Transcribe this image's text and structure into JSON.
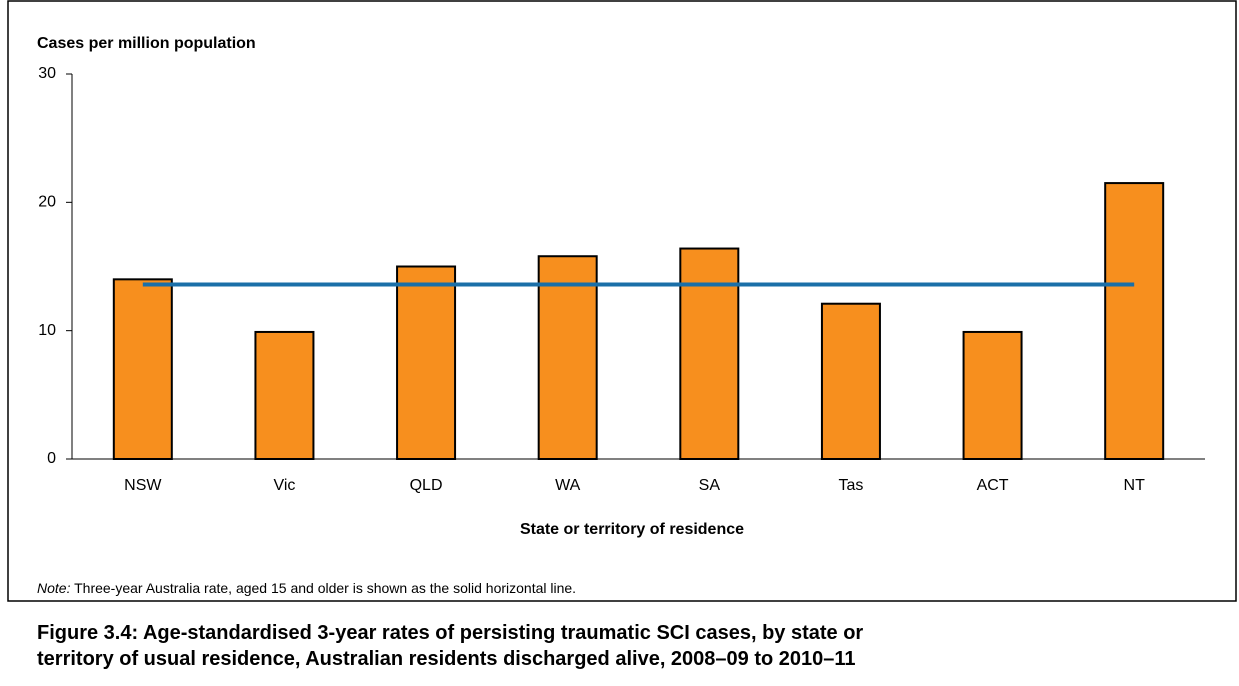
{
  "chart_data": {
    "type": "bar",
    "y_label": "Cases per million population",
    "x_label": "State or territory of residence",
    "categories": [
      "NSW",
      "Vic",
      "QLD",
      "WA",
      "SA",
      "Tas",
      "ACT",
      "NT"
    ],
    "values": [
      14.0,
      9.9,
      15.0,
      15.8,
      16.4,
      12.1,
      9.9,
      21.5
    ],
    "color": "#f78f1e",
    "reference_line": {
      "value": 13.6,
      "color": "#1a6fa8"
    },
    "ylim": [
      0,
      30
    ],
    "yticks": [
      0,
      10,
      20,
      30
    ],
    "grid": false,
    "note_label": "Note:",
    "note": " Three-year Australia rate, aged 15 and older is shown as the solid horizontal line.",
    "caption": [
      "Figure 3.4: Age-standardised 3-year rates of persisting traumatic SCI cases, by state or",
      "territory of usual residence, Australian residents discharged alive, 2008–09 to 2010–11"
    ]
  }
}
